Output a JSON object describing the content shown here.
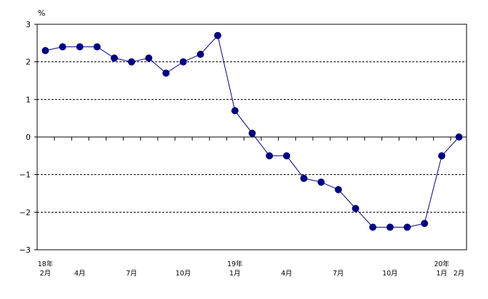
{
  "chart_data": {
    "type": "line",
    "title": "",
    "xlabel": "",
    "ylabel": "",
    "yunit": "%",
    "ylim": [
      -3,
      3
    ],
    "yticks": [
      3,
      2,
      1,
      0,
      -1,
      -2,
      -3
    ],
    "grid": "dashed horizontal at ±1, ±2",
    "legend": "none",
    "series": [
      {
        "color": "#000080",
        "values": [
          2.3,
          2.4,
          2.4,
          2.4,
          2.1,
          2.0,
          2.1,
          1.7,
          2.0,
          2.2,
          2.7,
          0.7,
          0.1,
          -0.5,
          -0.5,
          -1.1,
          -1.2,
          -1.4,
          -1.9,
          -2.4,
          -2.4,
          -2.4,
          -2.3,
          -0.5,
          0.0
        ]
      }
    ],
    "x_labels": [
      {
        "index": 0,
        "line1": "18年",
        "line2": "2月"
      },
      {
        "index": 2,
        "line1": "",
        "line2": "4月"
      },
      {
        "index": 5,
        "line1": "",
        "line2": "7月"
      },
      {
        "index": 8,
        "line1": "",
        "line2": "10月"
      },
      {
        "index": 11,
        "line1": "19年",
        "line2": "1月"
      },
      {
        "index": 14,
        "line1": "",
        "line2": "4月"
      },
      {
        "index": 17,
        "line1": "",
        "line2": "7月"
      },
      {
        "index": 20,
        "line1": "",
        "line2": "10月"
      },
      {
        "index": 23,
        "line1": "20年",
        "line2": "1月"
      },
      {
        "index": 24,
        "line1": "",
        "line2": "2月"
      }
    ]
  }
}
